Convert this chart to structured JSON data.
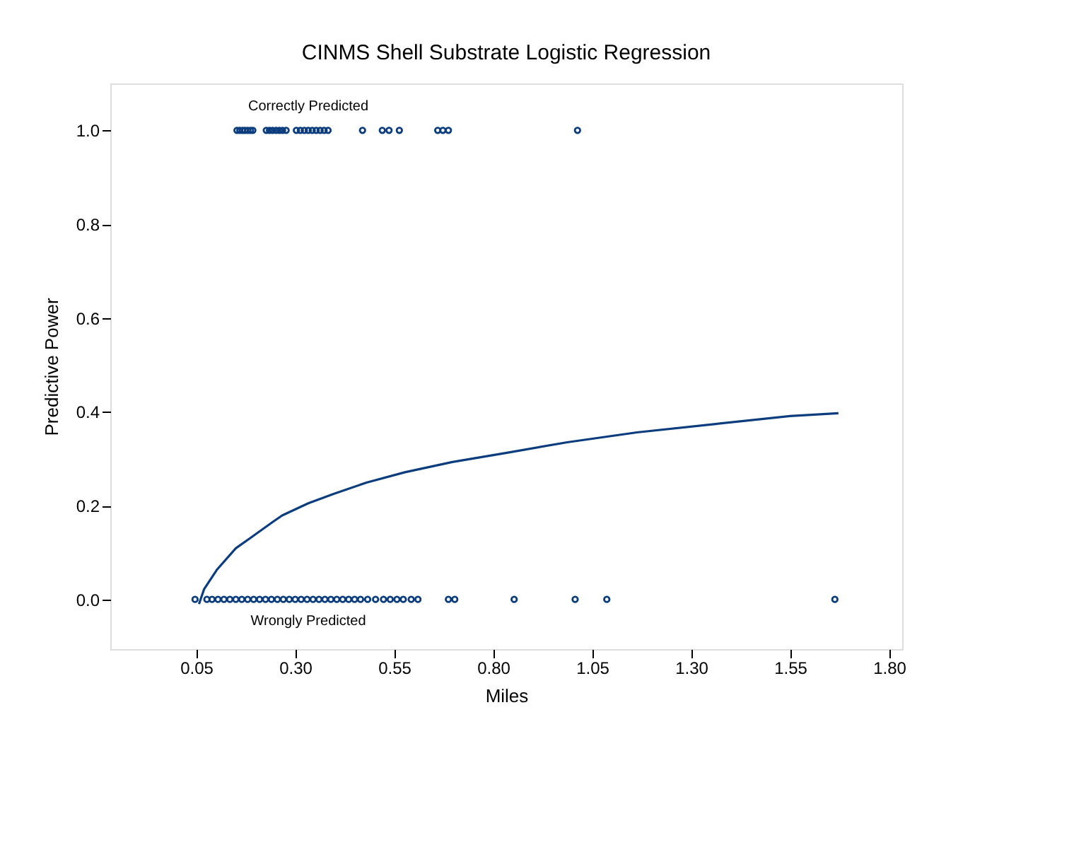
{
  "chart_data": {
    "type": "scatter",
    "title": "CINMS Shell Substrate Logistic Regression",
    "xlabel": "Miles",
    "ylabel": "Predictive Power",
    "xlim": [
      -0.167,
      1.833
    ],
    "ylim": [
      -0.106,
      1.1
    ],
    "xticks": [
      {
        "value": 0.05,
        "label": "0.05"
      },
      {
        "value": 0.3,
        "label": "0.30"
      },
      {
        "value": 0.55,
        "label": "0.55"
      },
      {
        "value": 0.8,
        "label": "0.80"
      },
      {
        "value": 1.05,
        "label": "1.05"
      },
      {
        "value": 1.3,
        "label": "1.30"
      },
      {
        "value": 1.55,
        "label": "1.55"
      },
      {
        "value": 1.8,
        "label": "1.80"
      }
    ],
    "yticks": [
      {
        "value": 0,
        "label": "0.0"
      },
      {
        "value": 0.2,
        "label": "0.2"
      },
      {
        "value": 0.4,
        "label": "0.4"
      },
      {
        "value": 0.6,
        "label": "0.6"
      },
      {
        "value": 0.8,
        "label": "0.8"
      },
      {
        "value": 1,
        "label": "1.0"
      }
    ],
    "grid": false,
    "legend": false,
    "series": [
      {
        "marker": "circle",
        "color": "#0b3d7e",
        "x": [
          0.153,
          0.16,
          0.167,
          0.173,
          0.18,
          0.187,
          0.193,
          0.227,
          0.235,
          0.243,
          0.252,
          0.26,
          0.268,
          0.277,
          0.303,
          0.313,
          0.323,
          0.333,
          0.343,
          0.353,
          0.363,
          0.373,
          0.383,
          0.47,
          0.52,
          0.537,
          0.563,
          0.66,
          0.673,
          0.687,
          1.013,
          0.047,
          0.077,
          0.09,
          0.105,
          0.12,
          0.135,
          0.15,
          0.165,
          0.18,
          0.195,
          0.21,
          0.225,
          0.24,
          0.255,
          0.27,
          0.285,
          0.3,
          0.315,
          0.33,
          0.345,
          0.36,
          0.375,
          0.39,
          0.405,
          0.42,
          0.435,
          0.45,
          0.465,
          0.483,
          0.503,
          0.523,
          0.54,
          0.557,
          0.573,
          0.593,
          0.61,
          0.687,
          0.703,
          0.853,
          1.007,
          1.087,
          1.663
        ],
        "values": [
          1,
          1,
          1,
          1,
          1,
          1,
          1,
          1,
          1,
          1,
          1,
          1,
          1,
          1,
          1,
          1,
          1,
          1,
          1,
          1,
          1,
          1,
          1,
          1,
          1,
          1,
          1,
          1,
          1,
          1,
          1,
          0,
          0,
          0,
          0,
          0,
          0,
          0,
          0,
          0,
          0,
          0,
          0,
          0,
          0,
          0,
          0,
          0,
          0,
          0,
          0,
          0,
          0,
          0,
          0,
          0,
          0,
          0,
          0,
          0,
          0,
          0,
          0,
          0,
          0,
          0,
          0,
          0,
          0,
          0,
          0,
          0,
          0
        ]
      },
      {
        "type": "line",
        "marker": "none",
        "color": "#0b3d7e",
        "line_style": "solid",
        "x": [
          0.057,
          0.07,
          0.103,
          0.15,
          0.187,
          0.243,
          0.267,
          0.333,
          0.397,
          0.48,
          0.577,
          0.697,
          0.837,
          0.987,
          1.163,
          1.362,
          1.55,
          1.672
        ],
        "values": [
          -0.01,
          0.022,
          0.064,
          0.109,
          0.131,
          0.165,
          0.179,
          0.205,
          0.225,
          0.249,
          0.271,
          0.293,
          0.313,
          0.335,
          0.356,
          0.374,
          0.391,
          0.397
        ]
      }
    ],
    "annotations": [
      "Correctly Predicted",
      "Wrongly Predicted"
    ]
  }
}
